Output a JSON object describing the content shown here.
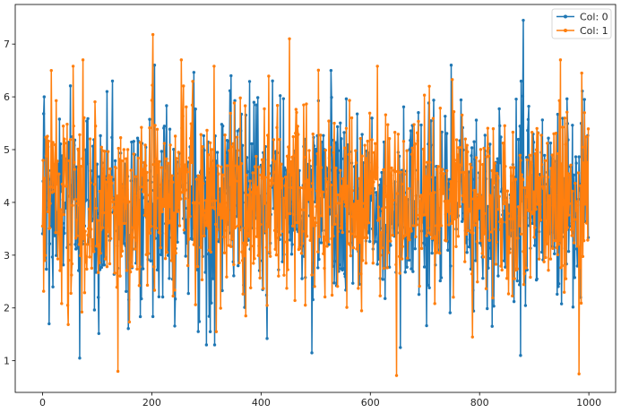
{
  "chart_data": {
    "type": "line",
    "markers": true,
    "x_range": [
      0,
      999
    ],
    "xlim": [
      -50,
      1049
    ],
    "ylim": [
      0.4,
      7.75
    ],
    "xticks": [
      0,
      200,
      400,
      600,
      800,
      1000
    ],
    "yticks": [
      1,
      2,
      3,
      4,
      5,
      6,
      7
    ],
    "xtick_labels": [
      "0",
      "200",
      "400",
      "600",
      "800",
      "1000"
    ],
    "ytick_labels": [
      "1",
      "2",
      "3",
      "4",
      "5",
      "6",
      "7"
    ],
    "grid": false,
    "legend_position": "top-right",
    "series": [
      {
        "name": "Col: 0",
        "color": "#1f77b4",
        "mean": 4.0,
        "approx_range": [
          1.05,
          7.45
        ],
        "notable_points": [
          {
            "x": 3,
            "y": 6.0
          },
          {
            "x": 12,
            "y": 1.7
          },
          {
            "x": 68,
            "y": 1.05
          },
          {
            "x": 128,
            "y": 6.3
          },
          {
            "x": 205,
            "y": 6.6
          },
          {
            "x": 300,
            "y": 1.3
          },
          {
            "x": 345,
            "y": 6.4
          },
          {
            "x": 493,
            "y": 1.15
          },
          {
            "x": 528,
            "y": 6.5
          },
          {
            "x": 655,
            "y": 1.25
          },
          {
            "x": 748,
            "y": 6.6
          },
          {
            "x": 875,
            "y": 1.1
          },
          {
            "x": 880,
            "y": 7.45
          },
          {
            "x": 985,
            "y": 2.2
          },
          {
            "x": 992,
            "y": 5.95
          }
        ]
      },
      {
        "name": "Col: 1",
        "color": "#ff7f0e",
        "mean": 4.0,
        "approx_range": [
          0.72,
          7.18
        ],
        "notable_points": [
          {
            "x": 0,
            "y": 3.55
          },
          {
            "x": 16,
            "y": 6.5
          },
          {
            "x": 74,
            "y": 6.7
          },
          {
            "x": 138,
            "y": 0.8
          },
          {
            "x": 202,
            "y": 7.18
          },
          {
            "x": 254,
            "y": 6.7
          },
          {
            "x": 318,
            "y": 1.55
          },
          {
            "x": 452,
            "y": 7.1
          },
          {
            "x": 648,
            "y": 0.72
          },
          {
            "x": 708,
            "y": 6.2
          },
          {
            "x": 787,
            "y": 1.45
          },
          {
            "x": 948,
            "y": 6.7
          },
          {
            "x": 982,
            "y": 0.75
          },
          {
            "x": 987,
            "y": 6.45
          },
          {
            "x": 992,
            "y": 5.7
          }
        ]
      }
    ]
  }
}
